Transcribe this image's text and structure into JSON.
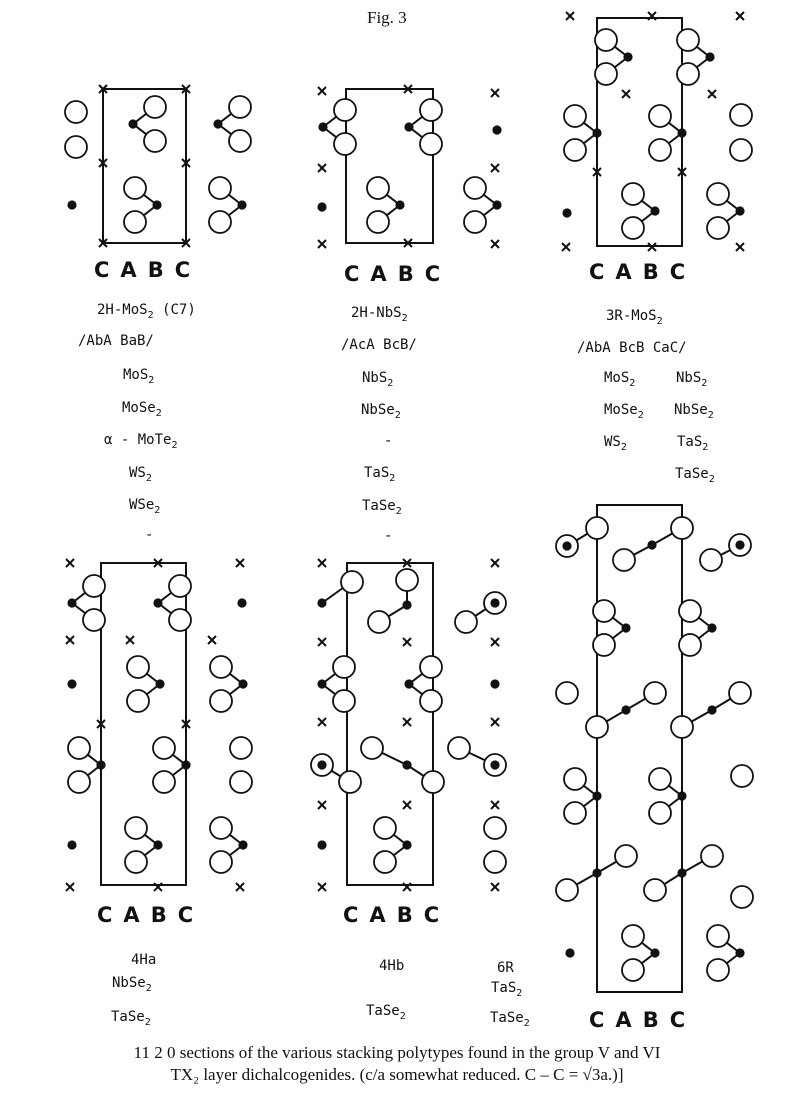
{
  "figure_title": "Fig. 3",
  "layer_labels": [
    "C",
    "A",
    "B",
    "C"
  ],
  "panels": [
    {
      "id": "2H-MoS2",
      "name": "2H-MoS2 (C7)",
      "sequence": "/AbA BaB/",
      "compounds": [
        "MoS2",
        "MoSe2",
        "α - MoTe2",
        "WS2",
        "WSe2",
        "-"
      ]
    },
    {
      "id": "2H-NbS2",
      "name": "2H-NbS2",
      "sequence": "/AcA BcB/",
      "compounds": [
        "NbS2",
        "NbSe2",
        "-",
        "TaS2",
        "TaSe2",
        "-"
      ]
    },
    {
      "id": "3R-MoS2",
      "name": "3R-MoS2",
      "sequence": "/AbA BcB CaC/",
      "compounds_left": [
        "MoS2",
        "MoSe2",
        "WS2"
      ],
      "compounds_right": [
        "NbS2",
        "NbSe2",
        "TaS2",
        "TaSe2"
      ]
    },
    {
      "id": "4Ha",
      "name": "4Ha",
      "compounds": [
        "NbSe2",
        "TaSe2"
      ]
    },
    {
      "id": "4Hb",
      "name": "4Hb",
      "compounds": [
        "TaSe2"
      ]
    },
    {
      "id": "6R",
      "name": "6R",
      "compounds": [
        "TaS2",
        "TaSe2"
      ]
    }
  ],
  "caption": {
    "line1": "11 2 0 sections of the various stacking polytypes found in the group V and VI",
    "line2": "TX₂ layer dichalcogenides.  (c/a somewhat reduced.  C – C = √3a.)]"
  },
  "colors": {
    "ink": "#111111",
    "paper": "#ffffff"
  }
}
